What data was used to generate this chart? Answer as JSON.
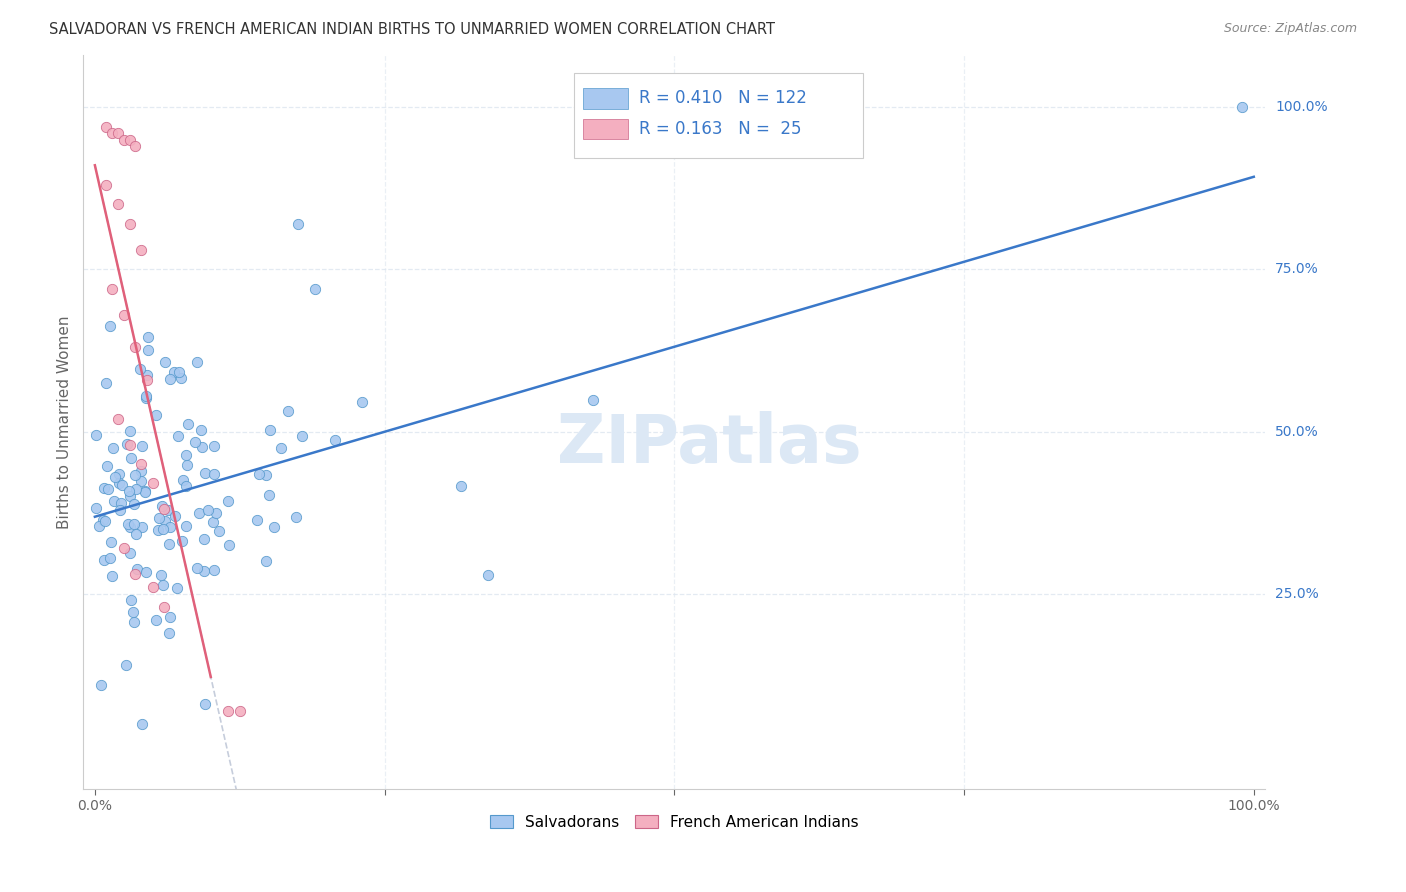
{
  "title": "SALVADORAN VS FRENCH AMERICAN INDIAN BIRTHS TO UNMARRIED WOMEN CORRELATION CHART",
  "source": "Source: ZipAtlas.com",
  "ylabel": "Births to Unmarried Women",
  "ytick_labels": [
    "100.0%",
    "75.0%",
    "50.0%",
    "25.0%"
  ],
  "ytick_positions": [
    1.0,
    0.75,
    0.5,
    0.25
  ],
  "blue_R": 0.41,
  "blue_N": 122,
  "pink_R": 0.163,
  "pink_N": 25,
  "blue_color": "#a8c8f0",
  "pink_color": "#f4afc0",
  "blue_line_color": "#3a78c9",
  "pink_line_color": "#e0607a",
  "blue_circle_edge": "#5599cc",
  "pink_circle_edge": "#cc6688",
  "dashed_line_color": "#c0c8d8",
  "watermark_color": "#dce8f5",
  "background_color": "#ffffff",
  "grid_color": "#dde5ef",
  "title_color": "#333333",
  "legend_text_color": "#3a78c9",
  "source_color": "#888888"
}
